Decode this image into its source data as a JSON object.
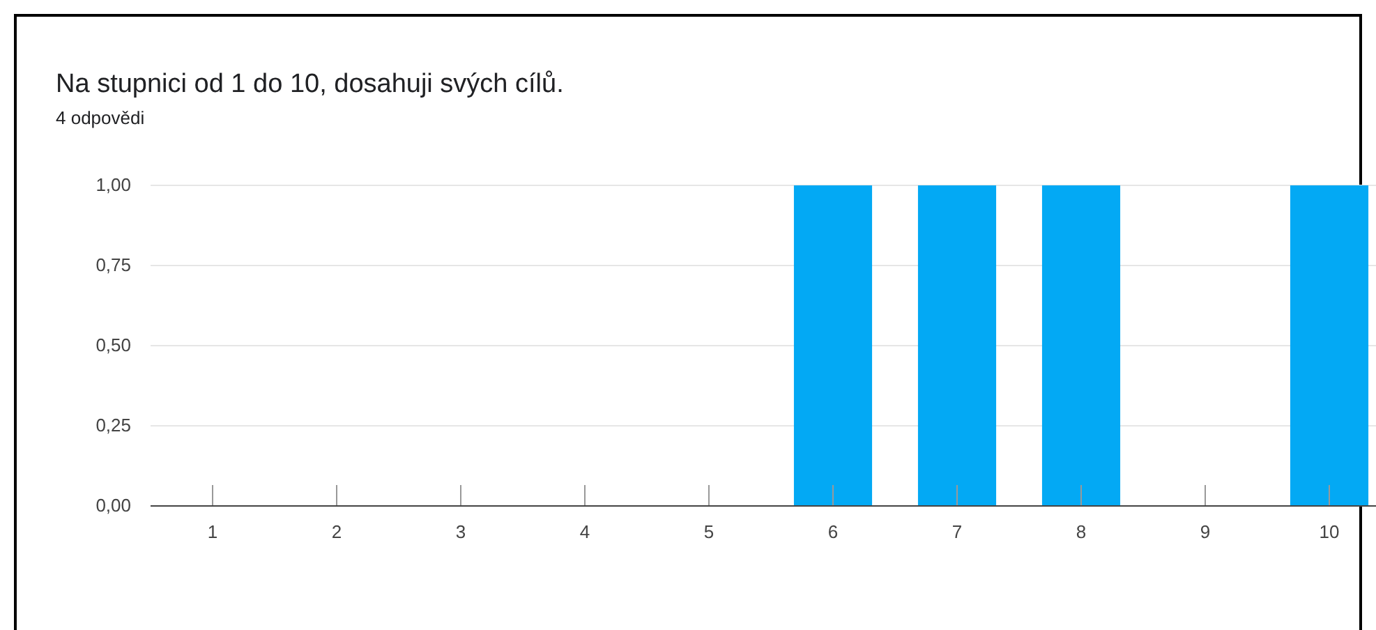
{
  "chart_data": {
    "type": "bar",
    "title": "Na stupnici od 1 do 10, dosahuji svých cílů.",
    "subtitle": "4 odpovědi",
    "categories": [
      "1",
      "2",
      "3",
      "4",
      "5",
      "6",
      "7",
      "8",
      "9",
      "10"
    ],
    "values": [
      0,
      0,
      0,
      0,
      0,
      1,
      1,
      1,
      0,
      1
    ],
    "color": "#03a9f4",
    "ylim": [
      0,
      1
    ],
    "yticks": [
      {
        "value": 0,
        "label": "0,00"
      },
      {
        "value": 0.25,
        "label": "0,25"
      },
      {
        "value": 0.5,
        "label": "0,50"
      },
      {
        "value": 0.75,
        "label": "0,75"
      },
      {
        "value": 1,
        "label": "1,00"
      }
    ],
    "grid": "y"
  }
}
